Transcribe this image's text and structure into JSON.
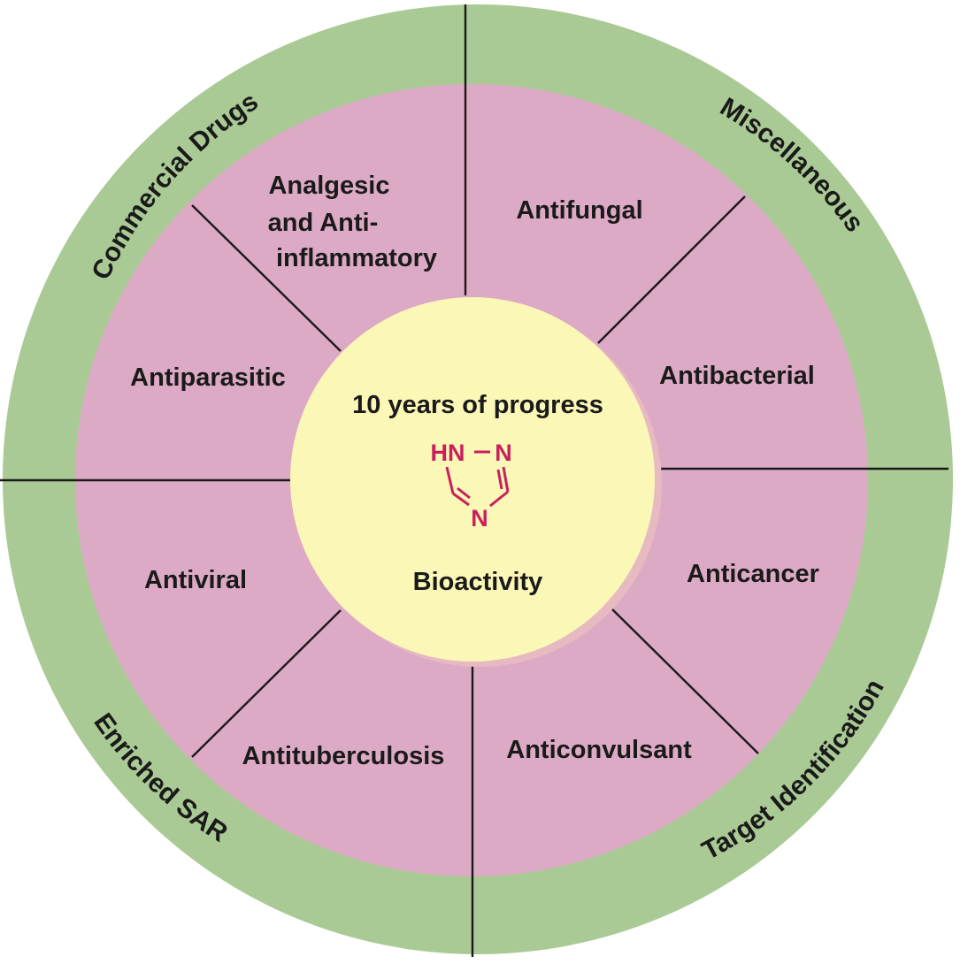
{
  "colors": {
    "outer_ring": "#aaca95",
    "inner_disk": "#ddaac6",
    "center_disk": "#fbf7b6",
    "center_shadow": "#e7b9c0",
    "divider": "#1a1a1a",
    "molecule": "#c8205f"
  },
  "center": {
    "title": "10 years of progress",
    "subtitle": "Bioactivity",
    "molecule": {
      "hn": "HN",
      "n_right": "N",
      "n_bottom": "N"
    }
  },
  "sectors": [
    {
      "id": "analgesic",
      "lines": [
        "Analgesic",
        "and Anti-",
        "inflammatory"
      ]
    },
    {
      "id": "antifungal",
      "lines": [
        "Antifungal"
      ]
    },
    {
      "id": "antibacterial",
      "lines": [
        "Antibacterial"
      ]
    },
    {
      "id": "anticancer",
      "lines": [
        "Anticancer"
      ]
    },
    {
      "id": "anticonvulsant",
      "lines": [
        "Anticonvulsant"
      ]
    },
    {
      "id": "antituberculosis",
      "lines": [
        "Antituberculosis"
      ]
    },
    {
      "id": "antiviral",
      "lines": [
        "Antiviral"
      ]
    },
    {
      "id": "antiparasitic",
      "lines": [
        "Antiparasitic"
      ]
    }
  ],
  "ring_labels": [
    {
      "id": "commercial-drugs",
      "text": "Commercial Drugs"
    },
    {
      "id": "miscellaneous",
      "text": "Miscellaneous"
    },
    {
      "id": "target-identification",
      "text": "Target Identification"
    },
    {
      "id": "enriched-sar",
      "text": "Enriched SAR"
    }
  ]
}
